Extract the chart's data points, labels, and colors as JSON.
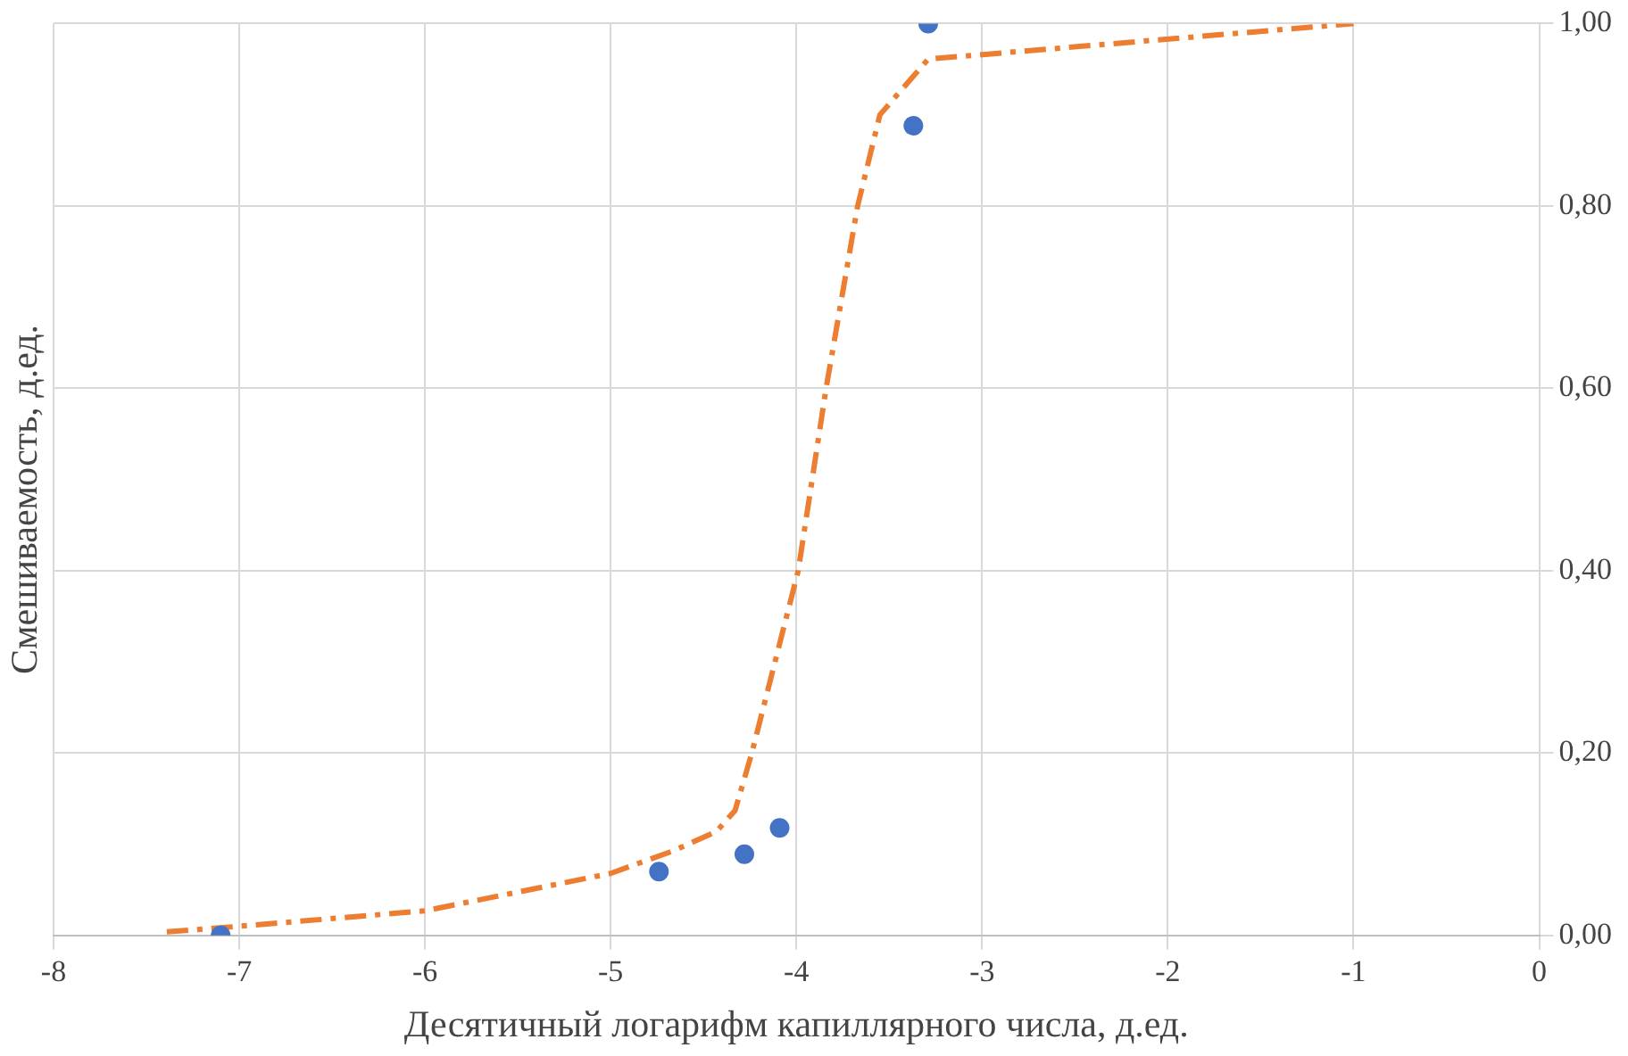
{
  "chart_data": {
    "type": "scatter",
    "xlabel": "Десятичный логарифм капиллярного числа, д.ед.",
    "ylabel": "Смешиваемость, д.ед.",
    "xlim": [
      -8,
      0
    ],
    "xticks": [
      -8,
      -7,
      -6,
      -5,
      -4,
      -3,
      -2,
      -1,
      0
    ],
    "ylim": [
      0,
      1.0
    ],
    "yticks": [
      {
        "value": 0,
        "label": "0,00"
      },
      {
        "value": 0.2,
        "label": "0,20"
      },
      {
        "value": 0.4,
        "label": "0,40"
      },
      {
        "value": 0.6,
        "label": "0,60"
      },
      {
        "value": 0.8,
        "label": "0,80"
      },
      {
        "value": 1.0,
        "label": "1,00"
      }
    ],
    "grid": true,
    "legend": false,
    "series": [
      {
        "type": "scatter",
        "color": "#4472c4",
        "marker": "circle",
        "x": [
          -7.1,
          -4.74,
          -4.28,
          -4.09,
          -3.37,
          -3.29
        ],
        "values": [
          0,
          0.07,
          0.089,
          0.118,
          0.888,
          1.0
        ]
      },
      {
        "type": "line",
        "color": "#ed7d31",
        "marker": "none",
        "line_style": "dashed",
        "x": [
          -7.39,
          -7,
          -6,
          -5,
          -4.66,
          -4.43,
          -4.33,
          -4.24,
          -3.99,
          -3.84,
          -3.67,
          -3.55,
          -3.29,
          -1
        ],
        "values": [
          0.004,
          0.01,
          0.027,
          0.068,
          0.093,
          0.114,
          0.137,
          0.2,
          0.4,
          0.6,
          0.8,
          0.9,
          0.961,
          1.0
        ]
      }
    ]
  }
}
